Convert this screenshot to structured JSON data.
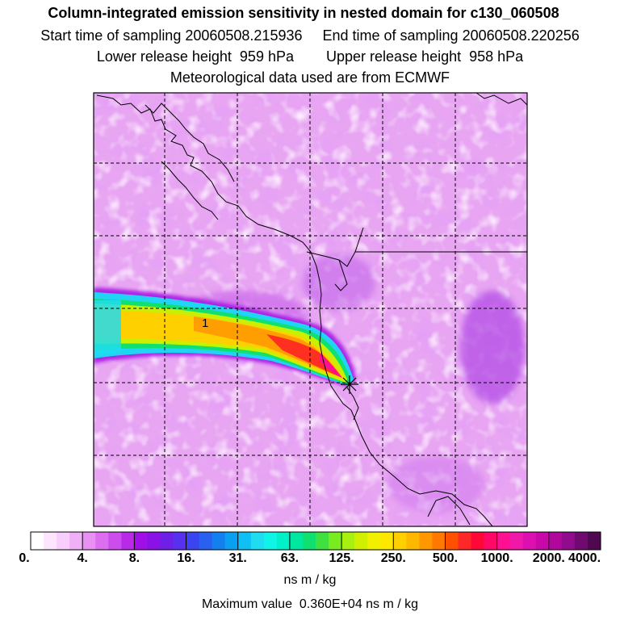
{
  "header": {
    "title": "Column-integrated emission sensitivity in nested domain for c130_060508",
    "line2": "Start time of sampling 20060508.215936     End time of sampling 20060508.220256",
    "line3": "Lower release height  959 hPa        Upper release height  958 hPa",
    "line4": "Meteorological data used are from ECMWF"
  },
  "map": {
    "plume_label": "1",
    "release_marker_icon": "star-marker-icon",
    "colors": {
      "background_light": "#f0c8f4",
      "background_mid": "#e49af0",
      "background_dark": "#c466e8",
      "grid": "#000000",
      "coast": "#000000"
    }
  },
  "colorbar": {
    "labels": [
      "0.",
      "4.",
      "8.",
      "16.",
      "31.",
      "63.",
      "125.",
      "250.",
      "500.",
      "1000.",
      "2000.",
      "4000."
    ],
    "colors": [
      "#ffffff",
      "#fde6fd",
      "#f8cefc",
      "#f0b0f8",
      "#e890f4",
      "#dc6ef0",
      "#cc4cec",
      "#b82ae8",
      "#a010e6",
      "#8a12e6",
      "#6e20e6",
      "#5830f0",
      "#3c44f0",
      "#2860f0",
      "#1480f0",
      "#0aa0f2",
      "#10c0f4",
      "#20dcf0",
      "#10f4e8",
      "#00f0c8",
      "#00e8a0",
      "#10e070",
      "#40e040",
      "#78ec20",
      "#a8f010",
      "#d0f000",
      "#f0f000",
      "#ffe800",
      "#ffd000",
      "#ffb800",
      "#ff9800",
      "#ff7800",
      "#ff5000",
      "#ff2828",
      "#ff0838",
      "#ff0868",
      "#ff1090",
      "#f018a8",
      "#dc10b0",
      "#c808a8",
      "#b0089c",
      "#900c8c",
      "#700a70",
      "#500850"
    ],
    "units": "ns m / kg",
    "max_value_text": "Maximum value  0.360E+04 ns m / kg"
  }
}
